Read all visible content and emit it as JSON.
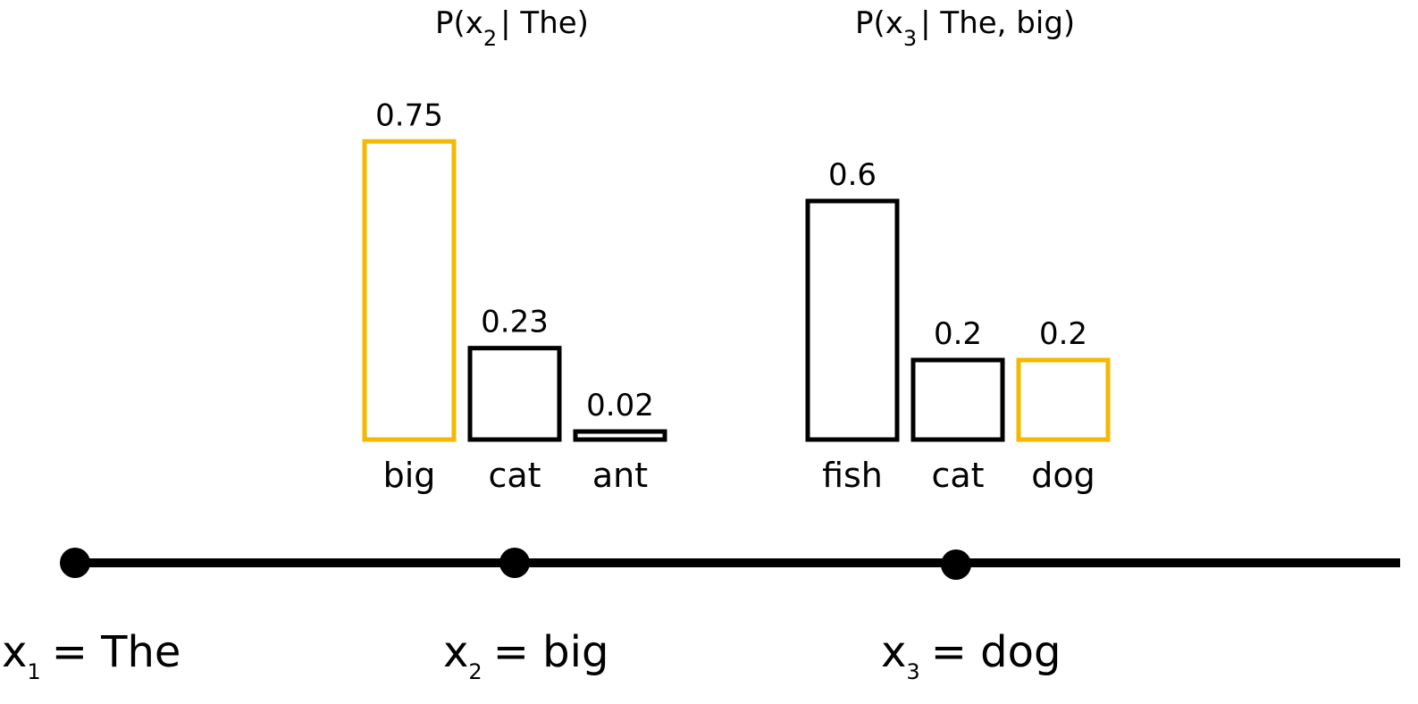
{
  "chart_data": [
    {
      "type": "bar",
      "title_parts": [
        "P(x",
        "2",
        "| The)"
      ],
      "categories": [
        "big",
        "cat",
        "ant"
      ],
      "values": [
        0.75,
        0.23,
        0.02
      ],
      "value_labels": [
        "0.75",
        "0.23",
        "0.02"
      ],
      "selected": "big"
    },
    {
      "type": "bar",
      "title_parts": [
        "P(x",
        "3",
        "| The, big)"
      ],
      "categories": [
        "fish",
        "cat",
        "dog"
      ],
      "values": [
        0.6,
        0.2,
        0.2
      ],
      "value_labels": [
        "0.6",
        "0.2",
        "0.2"
      ],
      "selected": "dog"
    }
  ],
  "sequence": [
    {
      "var": "x",
      "index": "1",
      "word": "= The"
    },
    {
      "var": "x",
      "index": "2",
      "word": "= big"
    },
    {
      "var": "x",
      "index": "3",
      "word": "= dog"
    }
  ],
  "colors": {
    "selected": "#f5b800",
    "default": "#000000"
  }
}
